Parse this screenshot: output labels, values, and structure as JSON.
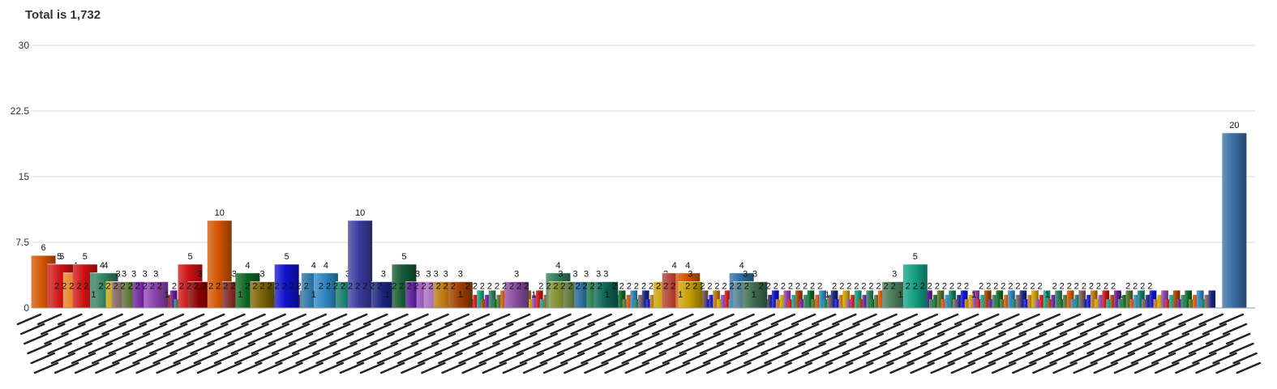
{
  "chart_data": {
    "type": "bar",
    "title": "Total is 1,732",
    "xlabel": "",
    "ylabel": "",
    "ylim": [
      0,
      30
    ],
    "yticks": [
      "0",
      "7.5",
      "15",
      "22.5",
      "30"
    ],
    "grid": true,
    "legend": "none",
    "category_count": 300,
    "x_tick_labels": "illegible (dense rotated labels)",
    "labeled_bars": [
      {
        "x": 0.009,
        "value": 6,
        "label": "6",
        "color": "#d35400"
      },
      {
        "x": 0.022,
        "value": 5,
        "label": "5",
        "color": "#cc1111"
      },
      {
        "x": 0.024,
        "value": 5,
        "label": "5",
        "color": "#cc1111"
      },
      {
        "x": 0.035,
        "value": 4,
        "label": "4",
        "color": "#e67e22"
      },
      {
        "x": 0.043,
        "value": 5,
        "label": "5",
        "color": "#cc1111"
      },
      {
        "x": 0.057,
        "value": 4,
        "label": "4",
        "color": "#2e7d5b"
      },
      {
        "x": 0.06,
        "value": 4,
        "label": "4",
        "color": "#2e7d5b"
      },
      {
        "x": 0.07,
        "value": 3,
        "label": "3",
        "color": "#c9a000"
      },
      {
        "x": 0.075,
        "value": 3,
        "label": "3",
        "color": "#7a5c58"
      },
      {
        "x": 0.083,
        "value": 3,
        "label": "3",
        "color": "#556b2f"
      },
      {
        "x": 0.092,
        "value": 3,
        "label": "3",
        "color": "#6a1b9a"
      },
      {
        "x": 0.101,
        "value": 3,
        "label": "3",
        "color": "#8e44ad"
      },
      {
        "x": 0.129,
        "value": 5,
        "label": "5",
        "color": "#cc1111"
      },
      {
        "x": 0.137,
        "value": 3,
        "label": "3",
        "color": "#8b0000"
      },
      {
        "x": 0.153,
        "value": 10,
        "label": "10",
        "color": "#d35400"
      },
      {
        "x": 0.165,
        "value": 3,
        "label": "3",
        "color": "#7b241c"
      },
      {
        "x": 0.176,
        "value": 4,
        "label": "4",
        "color": "#0b6623"
      },
      {
        "x": 0.188,
        "value": 3,
        "label": "3",
        "color": "#7d6608"
      },
      {
        "x": 0.208,
        "value": 5,
        "label": "5",
        "color": "#1111cc"
      },
      {
        "x": 0.23,
        "value": 4,
        "label": "4",
        "color": "#2471a3"
      },
      {
        "x": 0.24,
        "value": 4,
        "label": "4",
        "color": "#2e86c1"
      },
      {
        "x": 0.258,
        "value": 3,
        "label": "3",
        "color": "#117a65"
      },
      {
        "x": 0.268,
        "value": 10,
        "label": "10",
        "color": "#3b3b9e"
      },
      {
        "x": 0.287,
        "value": 3,
        "label": "3",
        "color": "#1a237e"
      },
      {
        "x": 0.304,
        "value": 5,
        "label": "5",
        "color": "#145a32"
      },
      {
        "x": 0.315,
        "value": 3,
        "label": "3",
        "color": "#4a148c"
      },
      {
        "x": 0.324,
        "value": 3,
        "label": "3",
        "color": "#8e44ad"
      },
      {
        "x": 0.33,
        "value": 3,
        "label": "3",
        "color": "#a569bd"
      },
      {
        "x": 0.338,
        "value": 3,
        "label": "3",
        "color": "#b9770e"
      },
      {
        "x": 0.35,
        "value": 3,
        "label": "3",
        "color": "#a04000"
      },
      {
        "x": 0.396,
        "value": 3,
        "label": "3",
        "color": "#884ea0"
      },
      {
        "x": 0.43,
        "value": 4,
        "label": "4",
        "color": "#2e7d5b"
      },
      {
        "x": 0.432,
        "value": 3,
        "label": "3",
        "color": "#7d8c2b"
      },
      {
        "x": 0.444,
        "value": 3,
        "label": "3",
        "color": "#556b2f"
      },
      {
        "x": 0.453,
        "value": 3,
        "label": "3",
        "color": "#1f618d"
      },
      {
        "x": 0.463,
        "value": 3,
        "label": "3",
        "color": "#196f3d"
      },
      {
        "x": 0.469,
        "value": 3,
        "label": "3",
        "color": "#0e6655"
      },
      {
        "x": 0.518,
        "value": 3,
        "label": "3",
        "color": "#c9a000"
      },
      {
        "x": 0.525,
        "value": 4,
        "label": "4",
        "color": "#b03a2e"
      },
      {
        "x": 0.536,
        "value": 4,
        "label": "4",
        "color": "#d35400"
      },
      {
        "x": 0.538,
        "value": 3,
        "label": "3",
        "color": "#c9a000"
      },
      {
        "x": 0.58,
        "value": 4,
        "label": "4",
        "color": "#2e6da4"
      },
      {
        "x": 0.583,
        "value": 3,
        "label": "3",
        "color": "#4a7a8c"
      },
      {
        "x": 0.591,
        "value": 3,
        "label": "3",
        "color": "#3d6b4f"
      },
      {
        "x": 0.705,
        "value": 3,
        "label": "3",
        "color": "#4a7a5a"
      },
      {
        "x": 0.722,
        "value": 5,
        "label": "5",
        "color": "#16a085"
      },
      {
        "x": 0.983,
        "value": 20,
        "label": "20",
        "color": "#3b6ea5"
      }
    ],
    "small_label_values": [
      2,
      1
    ]
  }
}
